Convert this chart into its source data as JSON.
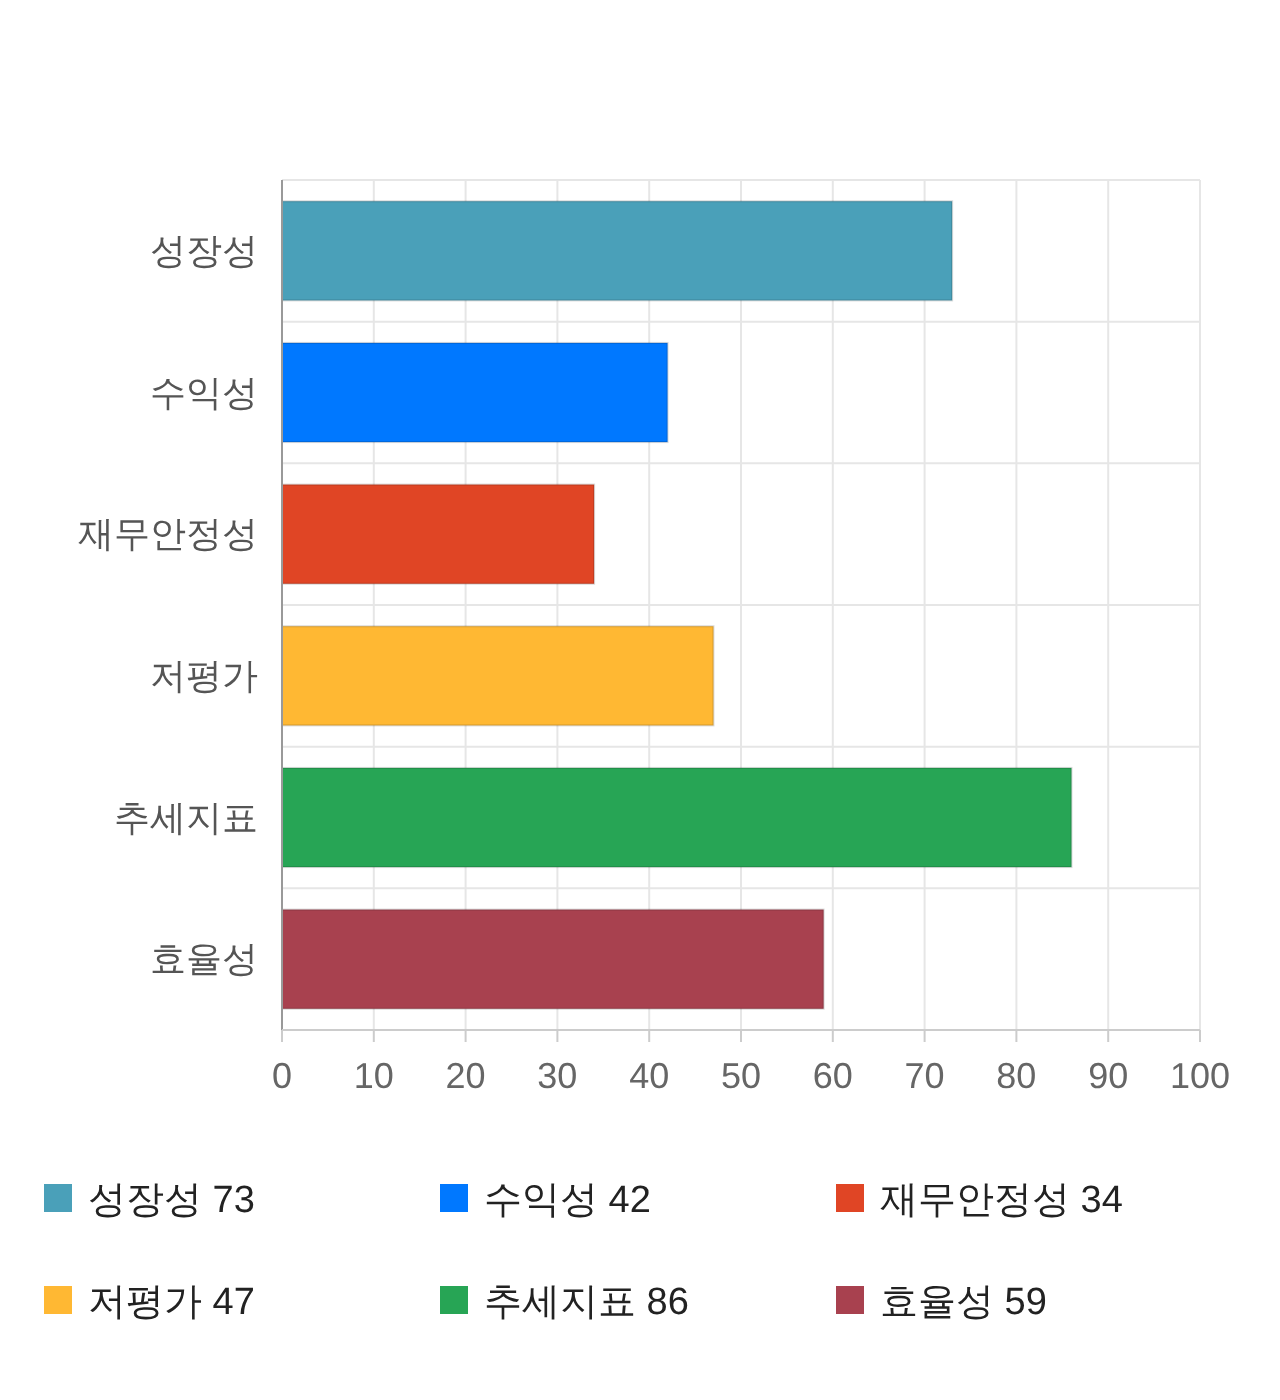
{
  "chart_data": {
    "type": "bar",
    "orientation": "horizontal",
    "stacked": true,
    "categories": [
      "성장성",
      "수익성",
      "재무안정성",
      "저평가",
      "추세지표",
      "효율성"
    ],
    "series": [
      {
        "name": "성장성 73",
        "color": "#4aa0b9",
        "values": [
          73,
          null,
          null,
          null,
          null,
          null
        ]
      },
      {
        "name": "수익성 42",
        "color": "#0078ff",
        "values": [
          null,
          42,
          null,
          null,
          null,
          null
        ]
      },
      {
        "name": "재무안정성 34",
        "color": "#e04525",
        "values": [
          null,
          null,
          34,
          null,
          null,
          null
        ]
      },
      {
        "name": "저평가 47",
        "color": "#ffb833",
        "values": [
          null,
          null,
          null,
          47,
          null,
          null
        ]
      },
      {
        "name": "추세지표 86",
        "color": "#27a555",
        "values": [
          null,
          null,
          null,
          null,
          86,
          null
        ]
      },
      {
        "name": "효율성 59",
        "color": "#a8414f",
        "values": [
          null,
          null,
          null,
          null,
          null,
          59
        ]
      }
    ],
    "xlim": [
      0,
      100
    ],
    "xticks": [
      0,
      10,
      20,
      30,
      40,
      50,
      60,
      70,
      80,
      90,
      100
    ],
    "grid": true,
    "legend": "bottom"
  }
}
